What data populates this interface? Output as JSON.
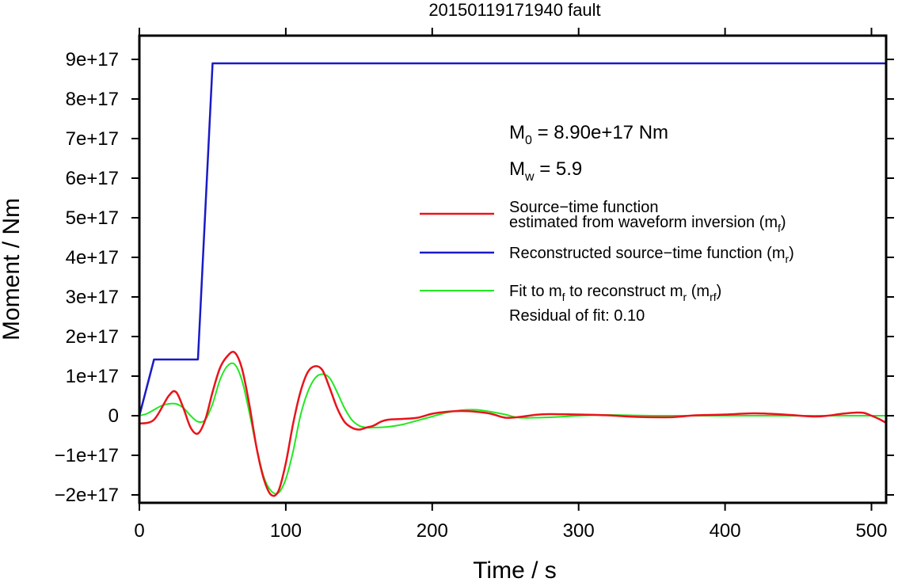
{
  "chart_data": {
    "type": "line",
    "title": "20150119171940 fault",
    "xlabel": "Time / s",
    "ylabel": "Moment / Nm",
    "xlim": [
      0,
      510
    ],
    "ylim": [
      -2.2e+17,
      9.6e+17
    ],
    "x_ticks": [
      0,
      100,
      200,
      300,
      400,
      500
    ],
    "x_tick_labels": [
      "0",
      "100",
      "200",
      "300",
      "400",
      "500"
    ],
    "y_ticks": [
      -2e+17,
      -1e+17,
      0,
      1e+17,
      2e+17,
      3e+17,
      4e+17,
      5e+17,
      6e+17,
      7e+17,
      8e+17,
      9e+17
    ],
    "y_tick_labels": [
      "−2e+17",
      "−1e+17",
      "0",
      "1e+17",
      "2e+17",
      "3e+17",
      "4e+17",
      "5e+17",
      "6e+17",
      "7e+17",
      "8e+17",
      "9e+17"
    ],
    "grid": false,
    "legend_position": "right",
    "series": [
      {
        "name": "Source−time function estimated from waveform inversion (m_f)",
        "color": "#e8141b",
        "x": [
          0,
          10,
          20,
          25,
          30,
          35,
          40,
          45,
          50,
          55,
          60,
          65,
          70,
          75,
          80,
          85,
          90,
          95,
          100,
          105,
          110,
          115,
          120,
          125,
          130,
          135,
          140,
          145,
          150,
          155,
          160,
          165,
          170,
          180,
          190,
          200,
          210,
          220,
          230,
          240,
          250,
          260,
          270,
          280,
          300,
          320,
          340,
          360,
          370,
          380,
          400,
          420,
          440,
          460,
          470,
          480,
          490,
          495,
          500,
          505,
          510
        ],
        "y": [
          -2e+16,
          -1e+16,
          5e+16,
          6e+16,
          2e+16,
          -3e+16,
          -4.5e+16,
          -1e+16,
          6e+16,
          1.2e+17,
          1.5e+17,
          1.6e+17,
          1.2e+17,
          3e+16,
          -8e+16,
          -1.6e+17,
          -2e+17,
          -1.9e+17,
          -1.2e+17,
          -2e+16,
          6e+16,
          1.1e+17,
          1.25e+17,
          1.15e+17,
          7e+16,
          2e+16,
          -1.5e+16,
          -3e+16,
          -3.5e+16,
          -3e+16,
          -2.5e+16,
          -1.5e+16,
          -1e+16,
          -8000000000000000.0,
          -5000000000000000.0,
          5000000000000000.0,
          1e+16,
          1.2e+16,
          1e+16,
          5000000000000000.0,
          -5000000000000000.0,
          -3000000000000000.0,
          2000000000000000.0,
          4000000000000000.0,
          3000000000000000.0,
          1000000000000000.0,
          -3000000000000000.0,
          -4000000000000000.0,
          -2000000000000000.0,
          1000000000000000.0,
          3000000000000000.0,
          6000000000000000.0,
          3000000000000000.0,
          -2000000000000000.0,
          0.0,
          5000000000000000.0,
          8000000000000000.0,
          7000000000000000.0,
          0.0,
          -8000000000000000.0,
          -1.8e+16
        ]
      },
      {
        "name": "Reconstructed source−time function (m_r)",
        "color": "#1a1ac8",
        "x": [
          0,
          10,
          40,
          50,
          510
        ],
        "y": [
          0,
          1.42e+17,
          1.42e+17,
          8.9e+17,
          8.9e+17
        ]
      },
      {
        "name": "Fit to m_f to reconstruct m_r (m_rf)",
        "color": "#22e822",
        "x": [
          0,
          5,
          10,
          15,
          20,
          25,
          30,
          35,
          40,
          45,
          50,
          55,
          60,
          65,
          70,
          75,
          80,
          85,
          90,
          95,
          100,
          105,
          110,
          115,
          120,
          125,
          130,
          135,
          140,
          145,
          150,
          155,
          160,
          170,
          180,
          190,
          200,
          210,
          220,
          230,
          240,
          250,
          260,
          280,
          300,
          320,
          350,
          400,
          450,
          510
        ],
        "y": [
          0,
          5000000000000000.0,
          1.5e+16,
          2.5e+16,
          3e+16,
          3e+16,
          2e+16,
          0.0,
          -1.5e+16,
          -1e+16,
          3e+16,
          9e+16,
          1.25e+17,
          1.3e+17,
          9e+16,
          1e+16,
          -8e+16,
          -1.55e+17,
          -1.9e+17,
          -1.95e+17,
          -1.6e+17,
          -9e+16,
          0.0,
          6e+16,
          9.5e+16,
          1.05e+17,
          9.5e+16,
          6e+16,
          2e+16,
          -1e+16,
          -2.5e+16,
          -3e+16,
          -3e+16,
          -2.8e+16,
          -2.2e+16,
          -1.2e+16,
          -2000000000000000.0,
          8000000000000000.0,
          1.4e+16,
          1.5e+16,
          1e+16,
          3000000000000000.0,
          -5000000000000000.0,
          -4000000000000000.0,
          0.0,
          2000000000000000.0,
          0.0,
          0.0,
          0.0,
          0.0
        ]
      }
    ],
    "annotations": {
      "m0_prefix": "M",
      "m0_sub": "0",
      "m0_value": " = 8.90e+17 Nm",
      "mw_prefix": "M",
      "mw_sub": "w",
      "mw_value": " = 5.9",
      "residual": "Residual of fit: 0.10"
    },
    "legend": {
      "stf_line1": "Source−time function",
      "stf_line2": "estimated from waveform inversion (m",
      "stf_line2_sub": "f",
      "stf_line2_end": ")",
      "rec": "Reconstructed source−time function (m",
      "rec_sub": "r",
      "rec_end": ")",
      "fit_a": "Fit to m",
      "fit_sub1": "f",
      "fit_b": " to reconstruct m",
      "fit_sub2": "r",
      "fit_c": " (m",
      "fit_sub3": "rf",
      "fit_d": ")"
    }
  }
}
